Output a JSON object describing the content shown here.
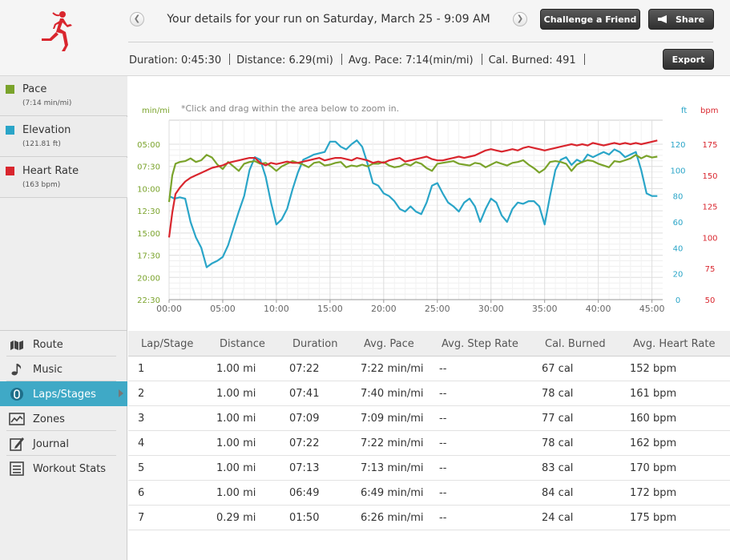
{
  "header": {
    "title": "Your details for your run on Saturday, March 25 - 9:09 AM",
    "challenge_label": "Challenge a Friend",
    "share_label": "Share",
    "export_label": "Export",
    "prev_icon": "❮",
    "next_icon": "❯",
    "stats": [
      {
        "label": "Duration:",
        "value": "0:45:30"
      },
      {
        "label": "Distance:",
        "value": "6.29(mi)"
      },
      {
        "label": "Avg. Pace:",
        "value": "7:14(min/mi)"
      },
      {
        "label": "Cal. Burned:",
        "value": "491"
      }
    ]
  },
  "legend": [
    {
      "name": "Pace",
      "sub": "(7:14 min/mi)",
      "color": "#7aa32b"
    },
    {
      "name": "Elevation",
      "sub": "(121.81 ft)",
      "color": "#2aa5c8"
    },
    {
      "name": "Heart Rate",
      "sub": "(163 bpm)",
      "color": "#d9262e"
    }
  ],
  "nav": [
    {
      "label": "Route",
      "icon": "route-icon",
      "active": false
    },
    {
      "label": "Music",
      "icon": "music-note-icon",
      "active": false
    },
    {
      "label": "Laps/Stages",
      "icon": "laps-icon",
      "active": true
    },
    {
      "label": "Zones",
      "icon": "zones-icon",
      "active": false
    },
    {
      "label": "Journal",
      "icon": "journal-icon",
      "active": false
    },
    {
      "label": "Workout Stats",
      "icon": "workout-stats-icon",
      "active": false
    }
  ],
  "chart_data": {
    "type": "line",
    "hint": "*Click and drag within the area below to zoom in.",
    "units": {
      "pace": "min/mi",
      "elevation": "ft",
      "heart_rate": "bpm"
    },
    "x_ticks": [
      "00:00",
      "05:00",
      "10:00",
      "15:00",
      "20:00",
      "25:00",
      "30:00",
      "35:00",
      "40:00",
      "45:00"
    ],
    "xlim_minutes": [
      0,
      46
    ],
    "pace_ticks": [
      "05:00",
      "07:30",
      "10:00",
      "12:30",
      "15:00",
      "17:30",
      "20:00",
      "22:30"
    ],
    "elevation_ticks": [
      "120",
      "100",
      "80",
      "60",
      "40",
      "20",
      "0"
    ],
    "elevation_lim": [
      0,
      120
    ],
    "hr_ticks": [
      "175",
      "150",
      "125",
      "100",
      "75",
      "50"
    ],
    "hr_lim": [
      50,
      175
    ],
    "pace_lim_minutes": [
      5,
      22.5
    ],
    "grid": true,
    "series": [
      {
        "name": "Pace",
        "color": "#7aa32b",
        "x": [
          0,
          0.3,
          0.6,
          1,
          1.5,
          2,
          2.5,
          3,
          3.5,
          4,
          4.5,
          5,
          5.5,
          6,
          6.5,
          7,
          7.5,
          8,
          8.5,
          9,
          9.5,
          10,
          10.5,
          11,
          11.5,
          12,
          12.5,
          13,
          13.5,
          14,
          14.5,
          15,
          15.5,
          16,
          16.5,
          17,
          17.5,
          18,
          18.5,
          19,
          19.5,
          20,
          20.5,
          21,
          21.5,
          22,
          22.5,
          23,
          23.5,
          24,
          24.5,
          25,
          25.5,
          26,
          26.5,
          27,
          27.5,
          28,
          28.5,
          29,
          29.5,
          30,
          30.5,
          31,
          31.5,
          32,
          32.5,
          33,
          33.5,
          34,
          34.5,
          35,
          35.5,
          36,
          36.5,
          37,
          37.5,
          38,
          38.5,
          39,
          39.5,
          40,
          40.5,
          41,
          41.5,
          42,
          42.5,
          43,
          43.5,
          44,
          44.5,
          45,
          45.5
        ],
        "y": [
          11.5,
          8.5,
          7.2,
          7.0,
          6.9,
          6.6,
          7.0,
          6.8,
          6.2,
          6.5,
          7.3,
          7.8,
          7.0,
          7.5,
          8.0,
          7.2,
          7.0,
          6.9,
          7.2,
          7.1,
          7.5,
          8.0,
          7.5,
          7.2,
          6.9,
          7.1,
          7.3,
          7.6,
          7.1,
          7.0,
          7.4,
          7.3,
          7.1,
          7.0,
          7.6,
          7.4,
          7.5,
          7.3,
          7.5,
          7.2,
          7.2,
          7.0,
          7.4,
          7.6,
          7.5,
          7.2,
          7.4,
          7.0,
          7.2,
          7.7,
          8.0,
          7.2,
          7.1,
          7.0,
          6.9,
          7.2,
          7.3,
          7.4,
          7.1,
          7.2,
          7.6,
          7.3,
          7.0,
          7.2,
          7.4,
          7.1,
          7.0,
          6.8,
          7.3,
          7.7,
          8.2,
          7.8,
          7.0,
          6.9,
          7.0,
          7.2,
          8.0,
          7.3,
          7.0,
          6.8,
          6.9,
          7.2,
          7.4,
          7.6,
          6.9,
          7.0,
          6.8,
          6.6,
          6.2,
          6.6,
          6.3,
          6.5,
          6.4
        ]
      },
      {
        "name": "Elevation",
        "color": "#2aa5c8",
        "x": [
          0,
          0.5,
          1,
          1.5,
          2,
          2.5,
          3,
          3.5,
          4,
          4.5,
          5,
          5.5,
          6,
          6.5,
          7,
          7.5,
          8,
          8.5,
          9,
          9.5,
          10,
          10.5,
          11,
          11.5,
          12,
          12.5,
          13,
          13.5,
          14,
          14.5,
          15,
          15.5,
          16,
          16.5,
          17,
          17.5,
          18,
          18.5,
          19,
          19.5,
          20,
          20.5,
          21,
          21.5,
          22,
          22.5,
          23,
          23.5,
          24,
          24.5,
          25,
          25.5,
          26,
          26.5,
          27,
          27.5,
          28,
          28.5,
          29,
          29.5,
          30,
          30.5,
          31,
          31.5,
          32,
          32.5,
          33,
          33.5,
          34,
          34.5,
          35,
          35.5,
          36,
          36.5,
          37,
          37.5,
          38,
          38.5,
          39,
          39.5,
          40,
          40.5,
          41,
          41.5,
          42,
          42.5,
          43,
          43.5,
          44,
          44.5,
          45,
          45.5
        ],
        "y": [
          80,
          78,
          79,
          78,
          60,
          48,
          40,
          25,
          28,
          30,
          33,
          42,
          55,
          68,
          80,
          100,
          110,
          108,
          95,
          75,
          58,
          62,
          70,
          85,
          98,
          108,
          110,
          112,
          113,
          114,
          122,
          122,
          118,
          116,
          120,
          123,
          118,
          105,
          90,
          88,
          82,
          80,
          76,
          70,
          68,
          72,
          68,
          66,
          75,
          88,
          90,
          82,
          75,
          72,
          68,
          75,
          78,
          72,
          60,
          70,
          78,
          75,
          65,
          60,
          70,
          75,
          74,
          76,
          76,
          72,
          58,
          80,
          100,
          108,
          110,
          104,
          108,
          106,
          112,
          110,
          112,
          114,
          112,
          116,
          114,
          110,
          112,
          114,
          100,
          82,
          80,
          80
        ]
      },
      {
        "name": "Heart Rate",
        "color": "#d9262e",
        "x": [
          0,
          0.3,
          0.6,
          1,
          1.5,
          2,
          2.5,
          3,
          3.5,
          4,
          4.5,
          5,
          5.5,
          6,
          6.5,
          7,
          7.5,
          8,
          8.5,
          9,
          9.5,
          10,
          10.5,
          11,
          11.5,
          12,
          12.5,
          13,
          13.5,
          14,
          14.5,
          15,
          15.5,
          16,
          16.5,
          17,
          17.5,
          18,
          18.5,
          19,
          19.5,
          20,
          20.5,
          21,
          21.5,
          22,
          22.5,
          23,
          23.5,
          24,
          24.5,
          25,
          25.5,
          26,
          26.5,
          27,
          27.5,
          28,
          28.5,
          29,
          29.5,
          30,
          30.5,
          31,
          31.5,
          32,
          32.5,
          33,
          33.5,
          34,
          34.5,
          35,
          35.5,
          36,
          36.5,
          37,
          37.5,
          38,
          38.5,
          39,
          39.5,
          40,
          40.5,
          41,
          41.5,
          42,
          42.5,
          43,
          43.5,
          44,
          44.5,
          45,
          45.5
        ],
        "y": [
          100,
          120,
          135,
          140,
          145,
          148,
          150,
          152,
          154,
          156,
          157,
          158,
          160,
          161,
          162,
          163,
          164,
          164,
          160,
          158,
          160,
          159,
          160,
          161,
          160,
          160,
          161,
          162,
          163,
          164,
          162,
          163,
          164,
          164,
          163,
          162,
          164,
          163,
          162,
          160,
          161,
          160,
          162,
          163,
          164,
          161,
          162,
          163,
          164,
          165,
          163,
          162,
          162,
          163,
          164,
          165,
          164,
          165,
          166,
          168,
          170,
          171,
          170,
          169,
          170,
          171,
          170,
          172,
          173,
          172,
          171,
          170,
          171,
          172,
          173,
          174,
          175,
          174,
          175,
          174,
          176,
          175,
          174,
          175,
          176,
          175,
          176,
          175,
          176,
          175,
          176,
          177,
          178
        ]
      }
    ]
  },
  "laps": {
    "headers": [
      "Lap/Stage",
      "Distance",
      "Duration",
      "Avg. Pace",
      "Avg. Step Rate",
      "Cal. Burned",
      "Avg. Heart Rate"
    ],
    "rows": [
      [
        "1",
        "1.00 mi",
        "07:22",
        "7:22 min/mi",
        "--",
        "67 cal",
        "152 bpm"
      ],
      [
        "2",
        "1.00 mi",
        "07:41",
        "7:40 min/mi",
        "--",
        "78 cal",
        "161 bpm"
      ],
      [
        "3",
        "1.00 mi",
        "07:09",
        "7:09 min/mi",
        "--",
        "77 cal",
        "160 bpm"
      ],
      [
        "4",
        "1.00 mi",
        "07:22",
        "7:22 min/mi",
        "--",
        "78 cal",
        "162 bpm"
      ],
      [
        "5",
        "1.00 mi",
        "07:13",
        "7:13 min/mi",
        "--",
        "83 cal",
        "170 bpm"
      ],
      [
        "6",
        "1.00 mi",
        "06:49",
        "6:49 min/mi",
        "--",
        "84 cal",
        "172 bpm"
      ],
      [
        "7",
        "0.29 mi",
        "01:50",
        "6:26 min/mi",
        "--",
        "24 cal",
        "175 bpm"
      ]
    ]
  }
}
